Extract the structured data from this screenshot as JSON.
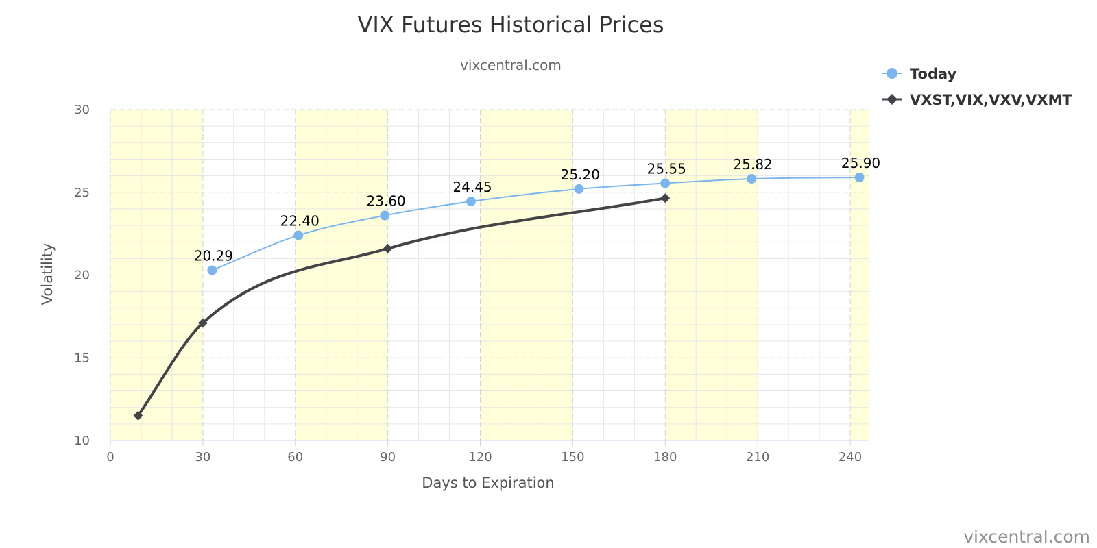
{
  "chart_data": {
    "type": "line",
    "title": "VIX Futures Historical Prices",
    "subtitle": "vixcentral.com",
    "xlabel": "Days to Expiration",
    "ylabel": "Volatility",
    "xlim": [
      0,
      246
    ],
    "ylim": [
      10,
      30
    ],
    "x_ticks": [
      0,
      30,
      60,
      90,
      120,
      150,
      180,
      210,
      240
    ],
    "y_ticks": [
      10,
      15,
      20,
      25,
      30
    ],
    "grid": true,
    "legend_position": "top-right",
    "bands": [
      [
        0,
        30
      ],
      [
        60,
        90
      ],
      [
        120,
        150
      ],
      [
        180,
        210
      ],
      [
        240,
        246
      ]
    ],
    "band_color": "#ffffd9",
    "series": [
      {
        "name": "Today",
        "color": "#7cb5ec",
        "marker": "circle",
        "data_labels": true,
        "x": [
          33,
          61,
          89,
          117,
          152,
          180,
          208,
          243
        ],
        "y": [
          20.29,
          22.4,
          23.6,
          24.45,
          25.2,
          25.55,
          25.82,
          25.9
        ],
        "labels": [
          "20.29",
          "22.40",
          "23.60",
          "24.45",
          "25.20",
          "25.55",
          "25.82",
          "25.90"
        ]
      },
      {
        "name": "VXST,VIX,VXV,VXMT",
        "color": "#434348",
        "marker": "diamond",
        "data_labels": false,
        "x": [
          9,
          30,
          90,
          180
        ],
        "y": [
          11.5,
          17.1,
          21.6,
          24.65
        ]
      }
    ],
    "credit": "vixcentral.com"
  }
}
